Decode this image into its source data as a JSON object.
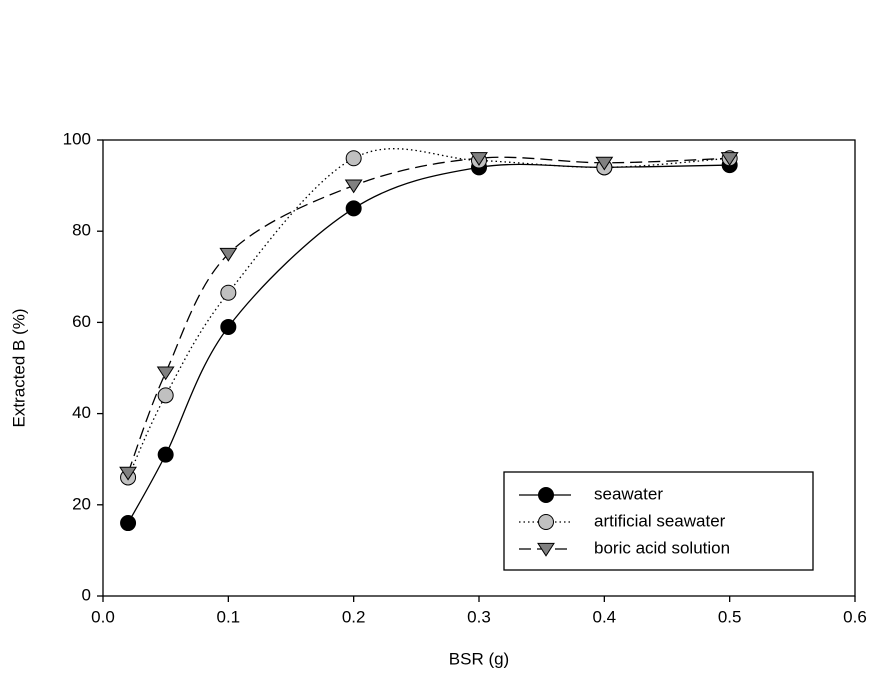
{
  "chart_data": {
    "type": "line",
    "x_label": "BSR (g)",
    "y_label": "Extracted B (%)",
    "x": [
      0.02,
      0.05,
      0.1,
      0.2,
      0.3,
      0.4,
      0.5
    ],
    "series": [
      {
        "name": "seawater",
        "color": "#000000",
        "marker": "circle",
        "line_style": "solid",
        "values": [
          16,
          31,
          59,
          85,
          94,
          94,
          94.5
        ]
      },
      {
        "name": "artificial seawater",
        "color": "#c0c0c0",
        "marker": "circle",
        "line_style": "dotted",
        "values": [
          26,
          44,
          66.5,
          96,
          95.5,
          94,
          96
        ]
      },
      {
        "name": "boric acid solution",
        "color": "#808080",
        "marker": "triangle-down",
        "line_style": "dashed",
        "values": [
          27,
          49,
          75,
          90,
          96,
          95,
          96
        ]
      }
    ],
    "xlim": [
      0,
      0.6
    ],
    "xticks": [
      {
        "value": 0,
        "label": "0.0"
      },
      0.1,
      0.2,
      0.3,
      0.4,
      0.5,
      0.6
    ],
    "ylim": [
      0,
      100
    ],
    "yticks": [
      0,
      20,
      40,
      60,
      80,
      100
    ],
    "grid": false,
    "legend": "lower right"
  }
}
